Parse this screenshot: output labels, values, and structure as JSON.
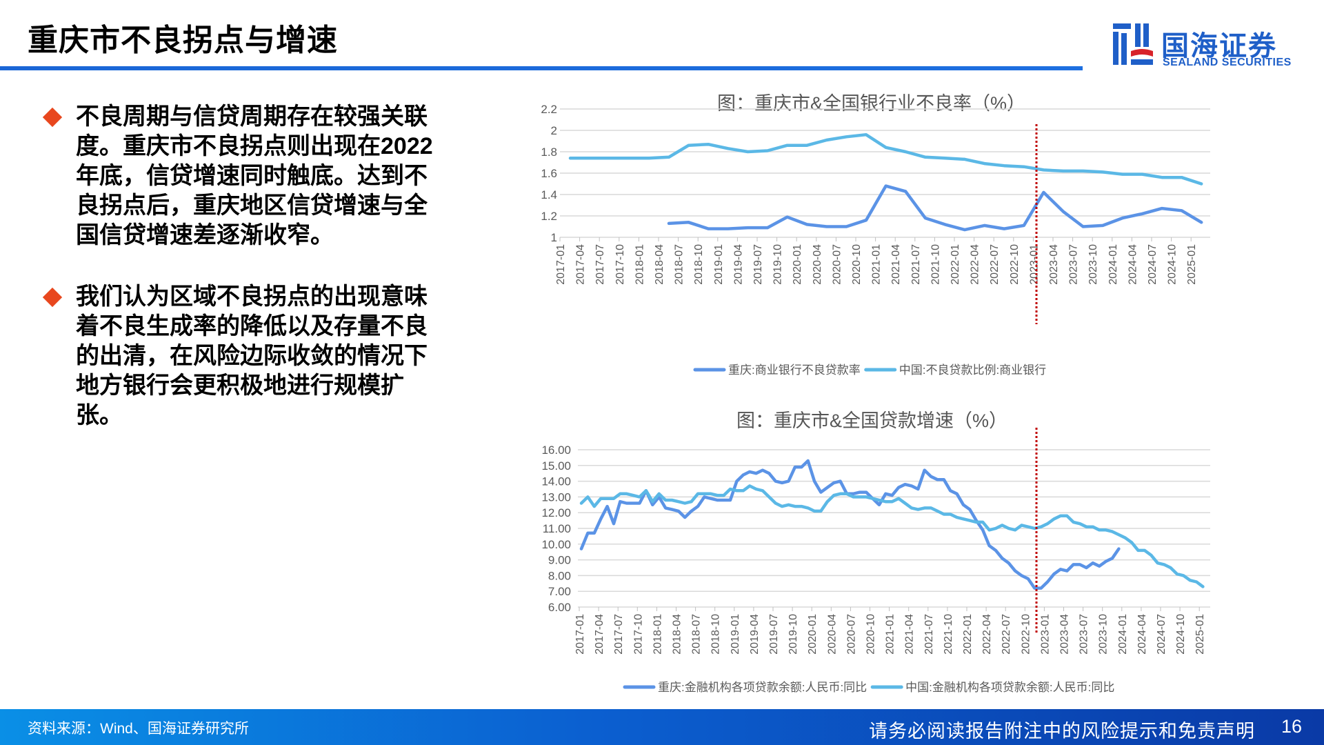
{
  "header": {
    "title": "重庆市不良拐点与增速",
    "logo_cn": "国海证券",
    "logo_en": "SEALAND SECURITIES"
  },
  "bullets": [
    {
      "text": "不良周期与信贷周期存在较强关联度。重庆市不良拐点则出现在2022年底，信贷增速同时触底。达到不良拐点后，重庆地区信贷增速与全国信贷增速差逐渐收窄。"
    },
    {
      "text": "我们认为区域不良拐点的出现意味着不良生成率的降低以及存量不良的出清，在风险边际收敛的情况下地方银行会更积极地进行规模扩张。"
    }
  ],
  "footer": {
    "source": "资料来源：Wind、国海证券研究所",
    "disclaimer": "请务必阅读报告附注中的风险提示和免责声明",
    "page_number": "16"
  },
  "colors": {
    "accent_blue": "#1a66d6",
    "series_chongqing": "#5b93e6",
    "series_china": "#5bb8e6",
    "marker_red": "#c00000",
    "bullet_orange": "#e8471e"
  },
  "chart_data": [
    {
      "type": "line",
      "title": "图：重庆市&全国银行业不良率（%）",
      "xlabel": "",
      "ylabel": "",
      "ylim": [
        1,
        2.2
      ],
      "yticks": [
        "1",
        "1.2",
        "1.4",
        "1.6",
        "1.8",
        "2",
        "2.2"
      ],
      "grid": true,
      "legend_position": "bottom",
      "vline_at": "2022-12",
      "categories": [
        "2017-01",
        "2017-04",
        "2017-07",
        "2017-10",
        "2018-01",
        "2018-04",
        "2018-07",
        "2018-10",
        "2019-01",
        "2019-04",
        "2019-07",
        "2019-10",
        "2020-01",
        "2020-04",
        "2020-07",
        "2020-10",
        "2021-01",
        "2021-04",
        "2021-07",
        "2021-10",
        "2022-01",
        "2022-04",
        "2022-07",
        "2022-10",
        "2023-01",
        "2023-04",
        "2023-07",
        "2023-10",
        "2024-01",
        "2024-04",
        "2024-07",
        "2024-10",
        "2025-01"
      ],
      "series": [
        {
          "name": "重庆:商业银行不良贷款率",
          "values": [
            null,
            null,
            null,
            null,
            null,
            1.13,
            1.14,
            1.08,
            1.08,
            1.09,
            1.09,
            1.19,
            1.12,
            1.1,
            1.1,
            1.16,
            1.48,
            1.43,
            1.18,
            1.12,
            1.07,
            1.11,
            1.08,
            1.11,
            1.42,
            1.24,
            1.1,
            1.11,
            1.18,
            1.22,
            1.27,
            1.25,
            1.14
          ]
        },
        {
          "name": "中国:不良贷款比例:商业银行",
          "values": [
            1.74,
            1.74,
            1.74,
            1.74,
            1.74,
            1.75,
            1.86,
            1.87,
            1.83,
            1.8,
            1.81,
            1.86,
            1.86,
            1.91,
            1.94,
            1.96,
            1.84,
            1.8,
            1.75,
            1.74,
            1.73,
            1.69,
            1.67,
            1.66,
            1.63,
            1.62,
            1.62,
            1.61,
            1.59,
            1.59,
            1.56,
            1.56,
            1.5
          ]
        }
      ]
    },
    {
      "type": "line",
      "title": "图：重庆市&全国贷款增速（%）",
      "xlabel": "",
      "ylabel": "",
      "ylim": [
        6,
        16
      ],
      "yticks": [
        "6.00",
        "7.00",
        "8.00",
        "9.00",
        "10.00",
        "11.00",
        "12.00",
        "13.00",
        "14.00",
        "15.00",
        "16.00"
      ],
      "grid": true,
      "legend_position": "bottom",
      "vline_at": "2022-12",
      "tick_labels": [
        "2017-01",
        "2017-04",
        "2017-07",
        "2017-10",
        "2018-01",
        "2018-04",
        "2018-07",
        "2018-10",
        "2019-01",
        "2019-04",
        "2019-07",
        "2019-10",
        "2020-01",
        "2020-04",
        "2020-07",
        "2020-10",
        "2021-01",
        "2021-04",
        "2021-07",
        "2021-10",
        "2022-01",
        "2022-04",
        "2022-07",
        "2022-10",
        "2023-01",
        "2023-04",
        "2023-07",
        "2023-10",
        "2024-01",
        "2024-04",
        "2024-07",
        "2024-10",
        "2025-01"
      ],
      "x_start": "2017-01",
      "x_frequency": "monthly",
      "series": [
        {
          "name": "重庆:金融机构各项贷款余额:人民币:同比",
          "values": [
            9.7,
            10.7,
            10.7,
            11.6,
            12.4,
            11.3,
            12.7,
            12.6,
            12.6,
            12.6,
            13.4,
            12.5,
            13.0,
            12.3,
            12.2,
            12.1,
            11.7,
            12.1,
            12.4,
            13.0,
            12.9,
            12.8,
            12.8,
            12.8,
            14.0,
            14.4,
            14.6,
            14.5,
            14.7,
            14.5,
            14.0,
            13.9,
            14.0,
            14.9,
            14.9,
            15.3,
            14.0,
            13.3,
            13.6,
            13.9,
            14.0,
            13.2,
            13.2,
            13.3,
            13.3,
            12.9,
            12.5,
            13.2,
            13.1,
            13.6,
            13.8,
            13.7,
            13.5,
            14.7,
            14.3,
            14.1,
            14.1,
            13.4,
            13.2,
            12.5,
            12.2,
            11.5,
            10.9,
            9.9,
            9.6,
            9.1,
            8.8,
            8.3,
            8.0,
            7.8,
            7.2,
            7.2,
            7.6,
            8.1,
            8.4,
            8.3,
            8.7,
            8.7,
            8.5,
            8.8,
            8.6,
            8.9,
            9.1,
            9.7,
            null,
            null,
            null,
            null,
            null,
            null,
            null,
            null,
            null,
            null,
            null,
            null,
            null
          ]
        },
        {
          "name": "中国:金融机构各项贷款余额:人民币:同比",
          "values": [
            12.6,
            13.0,
            12.4,
            12.9,
            12.9,
            12.9,
            13.2,
            13.2,
            13.1,
            13.0,
            13.4,
            12.7,
            13.2,
            12.8,
            12.8,
            12.7,
            12.6,
            12.7,
            13.2,
            13.2,
            13.2,
            13.1,
            13.1,
            13.5,
            13.4,
            13.4,
            13.7,
            13.5,
            13.4,
            13.0,
            12.6,
            12.4,
            12.5,
            12.4,
            12.4,
            12.3,
            12.1,
            12.1,
            12.7,
            13.1,
            13.2,
            13.2,
            13.0,
            13.0,
            13.0,
            12.9,
            12.8,
            12.7,
            12.7,
            12.9,
            12.6,
            12.3,
            12.2,
            12.3,
            12.3,
            12.1,
            11.9,
            11.9,
            11.7,
            11.6,
            11.5,
            11.4,
            11.4,
            10.9,
            11.0,
            11.2,
            11.0,
            10.9,
            11.2,
            11.1,
            11.0,
            11.1,
            11.3,
            11.6,
            11.8,
            11.8,
            11.4,
            11.3,
            11.1,
            11.1,
            10.9,
            10.9,
            10.8,
            10.6,
            10.4,
            10.1,
            9.6,
            9.6,
            9.3,
            8.8,
            8.7,
            8.5,
            8.1,
            8.0,
            7.7,
            7.6,
            7.3
          ]
        }
      ]
    }
  ]
}
